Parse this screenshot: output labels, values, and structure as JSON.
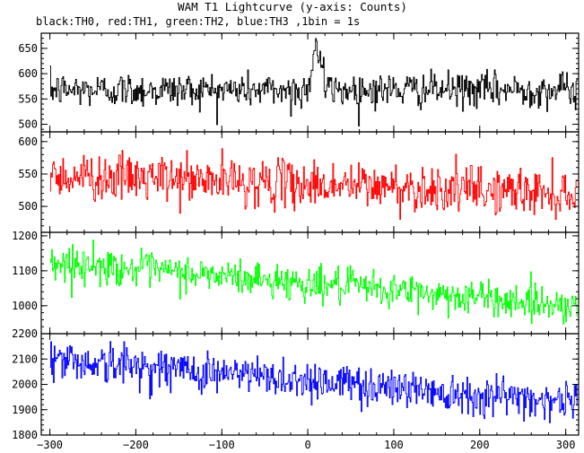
{
  "chart_data": {
    "type": "line",
    "title": "WAM T1 Lightcurve (y-axis: Counts)",
    "subtitle": "black:TH0, red:TH1, green:TH2, blue:TH3 ,1bin = 1s",
    "x_range": [
      -310,
      315
    ],
    "x_ticks": [
      -300,
      -200,
      -100,
      0,
      100,
      200,
      300
    ],
    "bin_seconds": 1,
    "panels": [
      {
        "name": "TH0",
        "color": "#000000",
        "ylim": [
          485,
          680
        ],
        "y_ticks": [
          500,
          550,
          600,
          650
        ],
        "baseline_start": 568,
        "baseline_end": 568,
        "noise_sd": 17,
        "features": [
          {
            "kind": "burst",
            "x_start": 0,
            "x_peak": 8,
            "x_end": 18,
            "peak": 670
          },
          {
            "kind": "dip",
            "x": -20,
            "value": 505
          }
        ]
      },
      {
        "name": "TH1",
        "color": "#ff0000",
        "ylim": [
          460,
          615
        ],
        "y_ticks": [
          500,
          550,
          600
        ],
        "baseline_start": 548,
        "baseline_end": 520,
        "noise_sd": 18,
        "features": []
      },
      {
        "name": "TH2",
        "color": "#00ff00",
        "ylim": [
          920,
          1210
        ],
        "y_ticks": [
          1000,
          1100,
          1200
        ],
        "baseline_start": 1125,
        "baseline_end": 1000,
        "noise_sd": 25,
        "features": []
      },
      {
        "name": "TH3",
        "color": "#0000ff",
        "ylim": [
          1800,
          2200
        ],
        "y_ticks": [
          1800,
          1900,
          2000,
          2100,
          2200
        ],
        "baseline_start": 2100,
        "baseline_end": 1930,
        "noise_sd": 40,
        "features": []
      }
    ]
  }
}
